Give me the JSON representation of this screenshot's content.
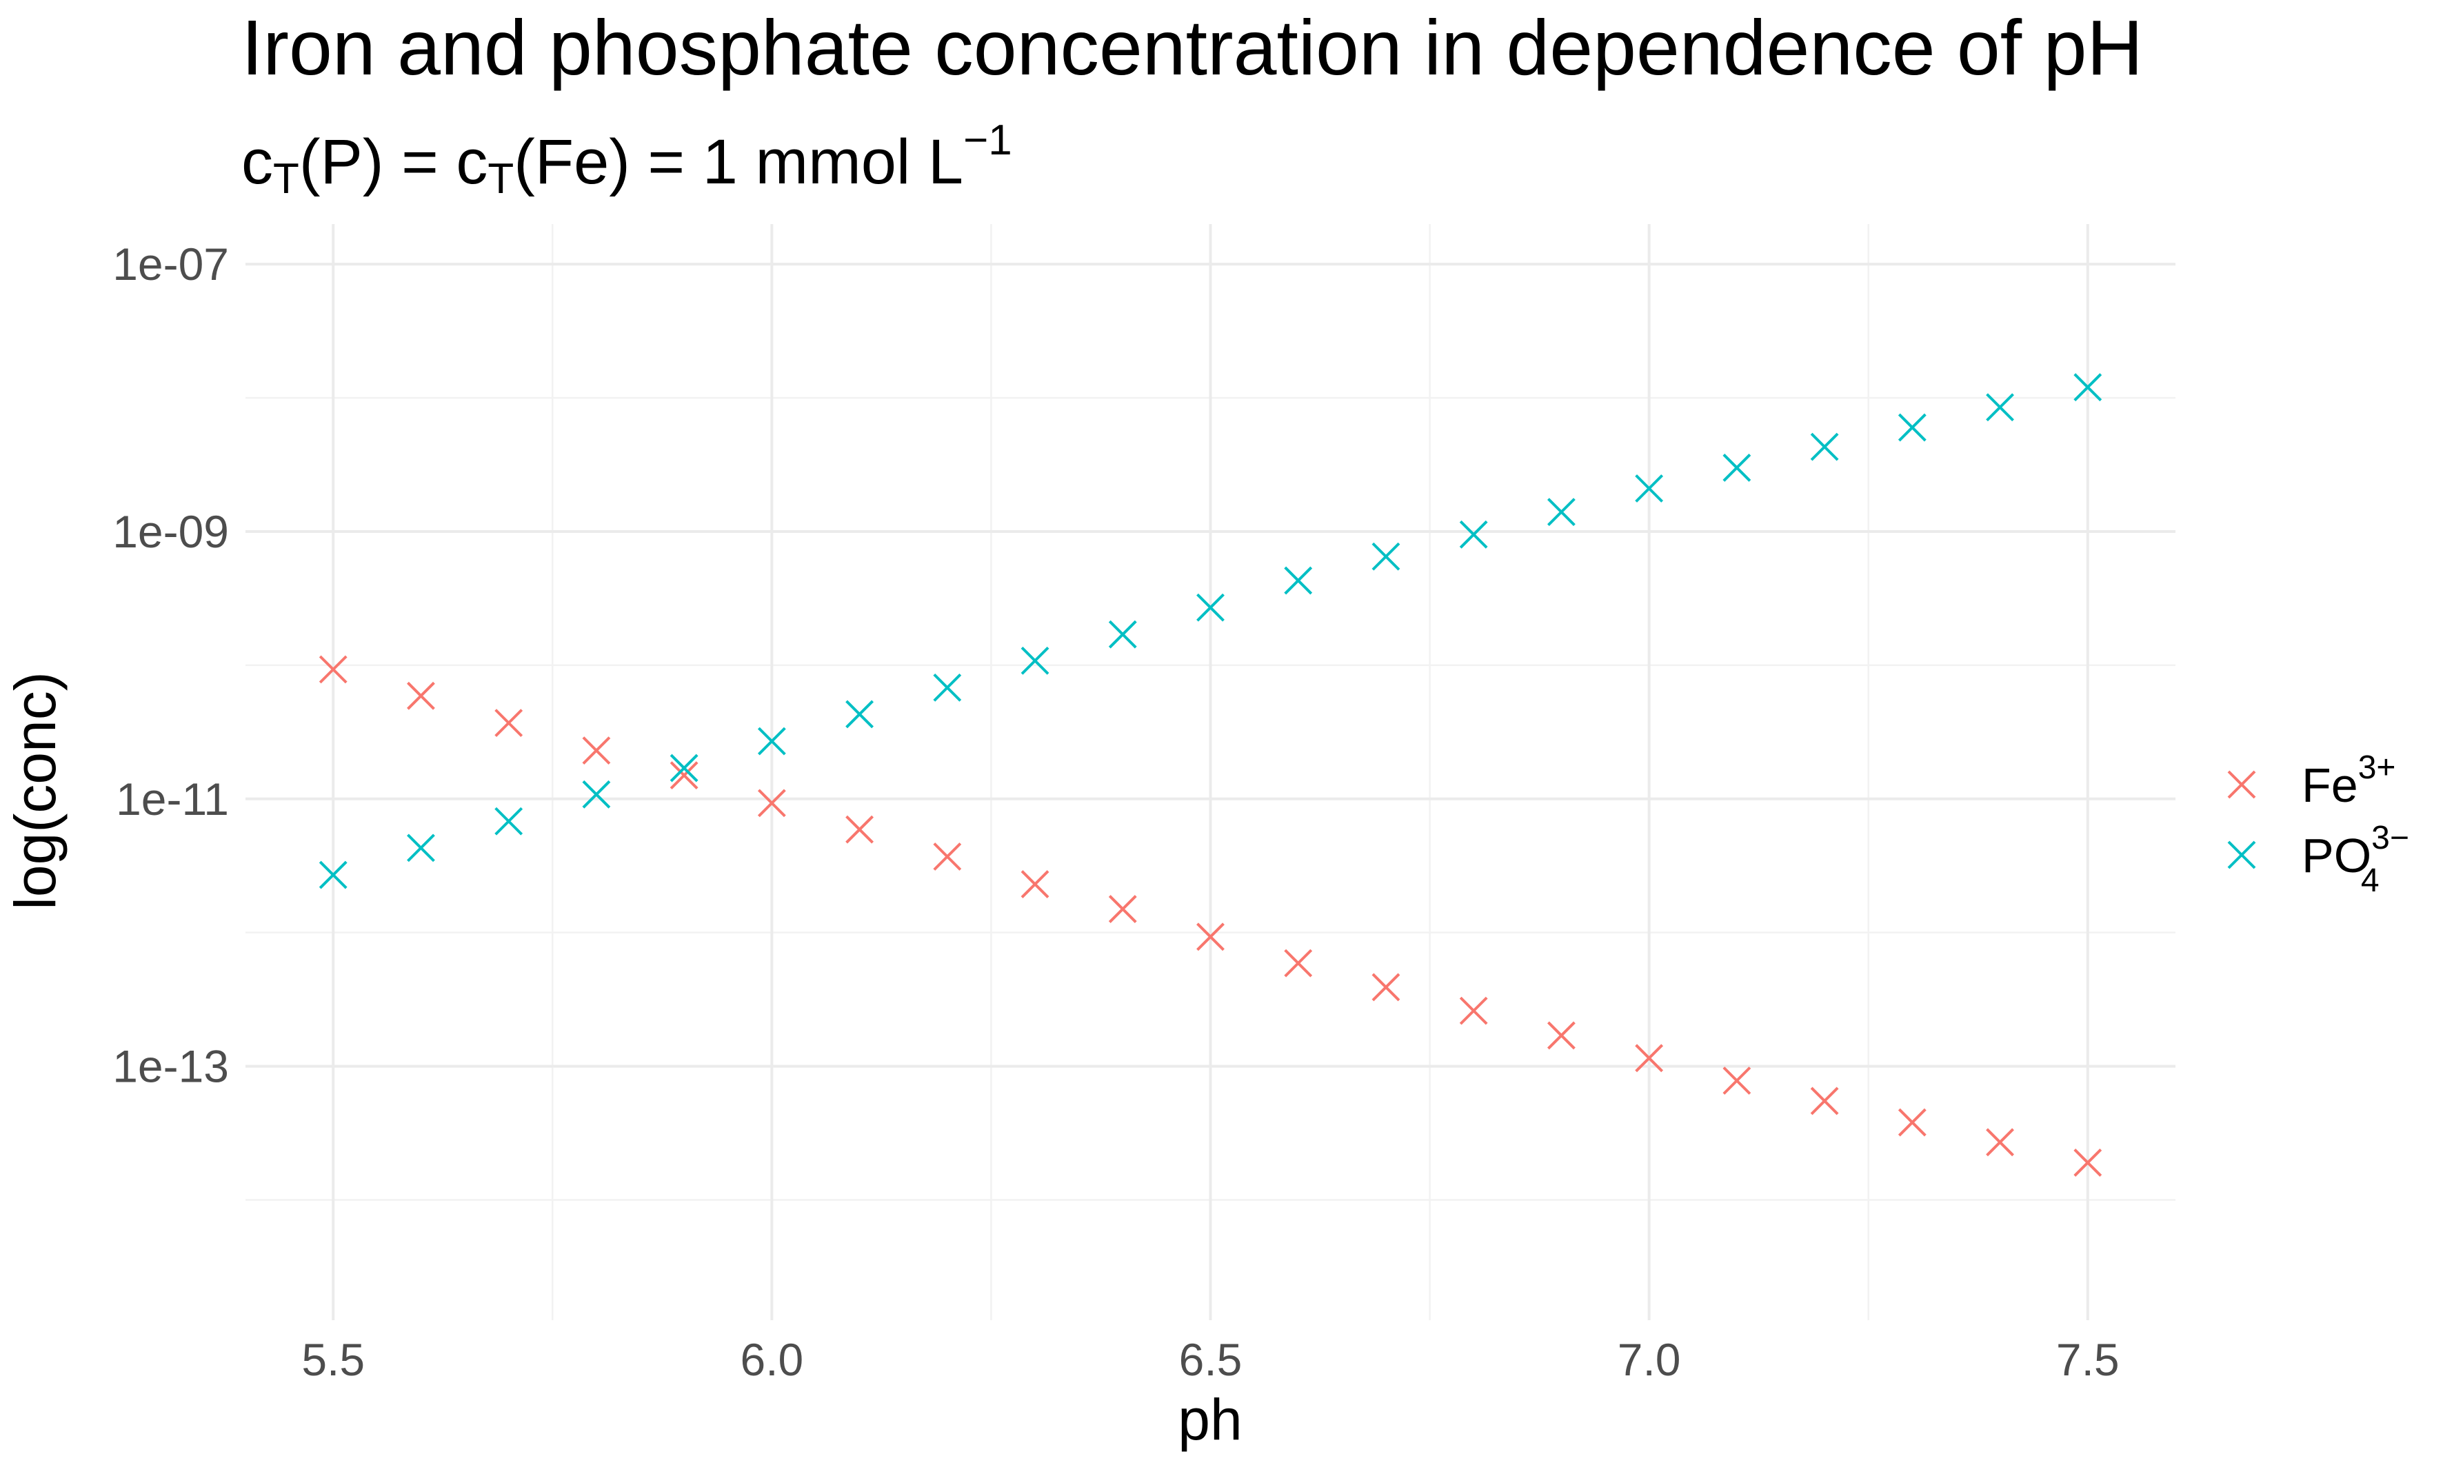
{
  "chart_data": {
    "type": "scatter",
    "title": "Iron and phosphate concentration in dependence of pH",
    "subtitle": {
      "c1": "c",
      "sub1": "T",
      "p1": "(P) = ",
      "c2": "c",
      "sub2": "T",
      "p2": "(Fe) = 1 mmol L",
      "sup": "−1"
    },
    "xlabel": "ph",
    "ylabel": "log(conc)",
    "xlim": [
      5.4,
      7.6
    ],
    "ylim_log10": [
      -14.9,
      -6.7
    ],
    "y_scale": "log10",
    "x_ticks": [
      {
        "value": 5.5,
        "label": "5.5"
      },
      {
        "value": 6.0,
        "label": "6.0"
      },
      {
        "value": 6.5,
        "label": "6.5"
      },
      {
        "value": 7.0,
        "label": "7.0"
      },
      {
        "value": 7.5,
        "label": "7.5"
      }
    ],
    "y_ticks": [
      {
        "value": 1e-07,
        "label": "1e-07"
      },
      {
        "value": 1e-09,
        "label": "1e-09"
      },
      {
        "value": 1e-11,
        "label": "1e-11"
      },
      {
        "value": 1e-13,
        "label": "1e-13"
      }
    ],
    "grid": true,
    "legend_position": "right",
    "x": [
      5.5,
      5.6,
      5.7,
      5.8,
      5.9,
      6.0,
      6.1,
      6.2,
      6.3,
      6.4,
      6.5,
      6.6,
      6.7,
      6.8,
      6.9,
      7.0,
      7.1,
      7.2,
      7.3,
      7.4,
      7.5
    ],
    "series": [
      {
        "legend": {
          "base": "Fe",
          "sup": "3+",
          "sub": ""
        },
        "color": "#F8766D",
        "marker": "x",
        "values": [
          9.3e-11,
          5.9e-11,
          3.7e-11,
          2.3e-11,
          1.5e-11,
          9.3e-12,
          5.9e-12,
          3.7e-12,
          2.3e-12,
          1.5e-12,
          9.3e-13,
          5.9e-13,
          3.9e-13,
          2.6e-13,
          1.7e-13,
          1.15e-13,
          7.8e-14,
          5.5e-14,
          3.8e-14,
          2.7e-14,
          1.9e-14
        ]
      },
      {
        "legend": {
          "base": "PO",
          "sup": "3−",
          "sub": "4"
        },
        "color": "#00BFC4",
        "marker": "x",
        "values": [
          2.7e-12,
          4.3e-12,
          6.8e-12,
          1.08e-11,
          1.7e-11,
          2.7e-11,
          4.3e-11,
          6.8e-11,
          1.08e-10,
          1.7e-10,
          2.7e-10,
          4.3e-10,
          6.5e-10,
          9.5e-10,
          1.4e-09,
          2.1e-09,
          3e-09,
          4.3e-09,
          6e-09,
          8.5e-09,
          1.2e-08
        ]
      }
    ]
  }
}
